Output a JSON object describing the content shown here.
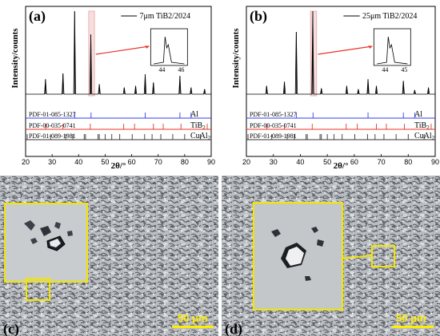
{
  "chart_data": [
    {
      "type": "line",
      "panel_label": "(a)",
      "legend": "7μm TiB2/2024",
      "ylabel": "Intensity/counts",
      "xlabel": "2θ/°",
      "xlim": [
        20,
        90
      ],
      "xticks": [
        "20",
        "30",
        "40",
        "50",
        "60",
        "70",
        "80",
        "90"
      ],
      "peaks": [
        {
          "x": 27.5,
          "h": 0.18
        },
        {
          "x": 34.1,
          "h": 0.25
        },
        {
          "x": 38.5,
          "h": 1.0
        },
        {
          "x": 44.6,
          "h": 0.72
        },
        {
          "x": 47.8,
          "h": 0.12
        },
        {
          "x": 57.2,
          "h": 0.08
        },
        {
          "x": 61.5,
          "h": 0.1
        },
        {
          "x": 65.1,
          "h": 0.24
        },
        {
          "x": 68.2,
          "h": 0.14
        },
        {
          "x": 78.2,
          "h": 0.22
        },
        {
          "x": 82.4,
          "h": 0.08
        },
        {
          "x": 87.5,
          "h": 0.06
        }
      ],
      "inset_ticks": [
        "44",
        "46"
      ],
      "refs": [
        {
          "name": "PDF-01-085-1327",
          "phase": "Al",
          "color": "#2f3df0",
          "lines": [
            38.5,
            44.7,
            65.1,
            78.2,
            82.4
          ]
        },
        {
          "name": "PDF-00-035-0741",
          "phase": "TiB",
          "phase_sub": "2",
          "color": "#e8342a",
          "lines": [
            27.6,
            34.1,
            44.4,
            57.0,
            61.1,
            68.2,
            71.9,
            78.6,
            88.5
          ]
        },
        {
          "name": "PDF-01-089-1981",
          "phase": "CuAl",
          "phase_sub": "2",
          "color": "#333333",
          "lines": [
            20.6,
            29.4,
            35.1,
            37.8,
            42.1,
            42.6,
            47.3,
            47.8,
            50.0,
            52.5,
            55.5,
            60.2,
            64.9,
            67.7,
            71.0,
            75.5,
            80.0,
            85.9
          ]
        }
      ]
    },
    {
      "type": "line",
      "panel_label": "(b)",
      "legend": "25μm TiB2/2024",
      "ylabel": "Intensity/counts",
      "xlabel": "2θ/°",
      "xlim": [
        20,
        90
      ],
      "xticks": [
        "20",
        "30",
        "40",
        "50",
        "60",
        "70",
        "80",
        "90"
      ],
      "peaks": [
        {
          "x": 27.5,
          "h": 0.1
        },
        {
          "x": 34.1,
          "h": 0.15
        },
        {
          "x": 38.5,
          "h": 0.75
        },
        {
          "x": 44.6,
          "h": 1.0
        },
        {
          "x": 47.8,
          "h": 0.07
        },
        {
          "x": 57.2,
          "h": 0.1
        },
        {
          "x": 61.5,
          "h": 0.06
        },
        {
          "x": 65.1,
          "h": 0.18
        },
        {
          "x": 68.2,
          "h": 0.1
        },
        {
          "x": 78.2,
          "h": 0.16
        },
        {
          "x": 82.4,
          "h": 0.05
        },
        {
          "x": 87.5,
          "h": 0.08
        }
      ],
      "inset_ticks": [
        "44",
        "45"
      ],
      "refs": [
        {
          "name": "PDF-01-085-1327",
          "phase": "Al",
          "color": "#2f3df0",
          "lines": [
            38.5,
            44.7,
            65.1,
            78.2,
            82.4
          ]
        },
        {
          "name": "PDF-00-035-0741",
          "phase": "TiB",
          "phase_sub": "2",
          "color": "#e8342a",
          "lines": [
            27.6,
            34.1,
            44.4,
            57.0,
            61.1,
            68.2,
            71.9,
            78.6,
            88.5
          ]
        },
        {
          "name": "PDF-01-089-1981",
          "phase": "CuAl",
          "phase_sub": "2",
          "color": "#333333",
          "lines": [
            20.6,
            29.4,
            35.1,
            37.8,
            42.1,
            42.6,
            47.3,
            47.8,
            50.0,
            52.5,
            55.5,
            60.2,
            64.9,
            67.7,
            71.0,
            75.5,
            80.0,
            85.9
          ]
        }
      ]
    }
  ],
  "micrographs": [
    {
      "label": "(c)",
      "scale_bar": "50 μm"
    },
    {
      "label": "(d)",
      "scale_bar": "50 μm"
    }
  ],
  "colors": {
    "highlight": "#f2e600",
    "peak_box": "#e8a0a0",
    "arrow": "#e8342a"
  }
}
